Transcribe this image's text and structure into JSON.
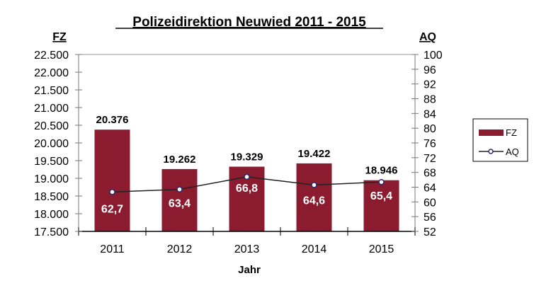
{
  "chart_data": {
    "type": "bar",
    "title": "Polizeidirektion Neuwied 2011 - 2015",
    "xlabel": "Jahr",
    "ylabel_left": "FZ",
    "ylabel_right": "AQ",
    "categories": [
      "2011",
      "2012",
      "2013",
      "2014",
      "2015"
    ],
    "ylim_left": [
      17500,
      22500
    ],
    "yticks_left": [
      "17.500",
      "18.000",
      "18.500",
      "19.000",
      "19.500",
      "20.000",
      "20.500",
      "21.000",
      "21.500",
      "22.000",
      "22.500"
    ],
    "ylim_right": [
      52,
      100
    ],
    "yticks_right": [
      "52",
      "56",
      "60",
      "64",
      "68",
      "72",
      "76",
      "80",
      "84",
      "88",
      "92",
      "96",
      "100"
    ],
    "grid": false,
    "legend_placement": "right",
    "series": [
      {
        "name": "FZ",
        "type": "bar",
        "axis": "left",
        "color": "#8B1C30",
        "values": [
          20376,
          19262,
          19329,
          19422,
          18946
        ],
        "labels": [
          "20.376",
          "19.262",
          "19.329",
          "19.422",
          "18.946"
        ]
      },
      {
        "name": "AQ",
        "type": "line",
        "axis": "right",
        "color": "#222222",
        "marker_color": "#2A2A6A",
        "values": [
          62.7,
          63.4,
          66.8,
          64.6,
          65.4
        ],
        "labels": [
          "62,7",
          "63,4",
          "66,8",
          "64,6",
          "65,4"
        ]
      }
    ]
  }
}
